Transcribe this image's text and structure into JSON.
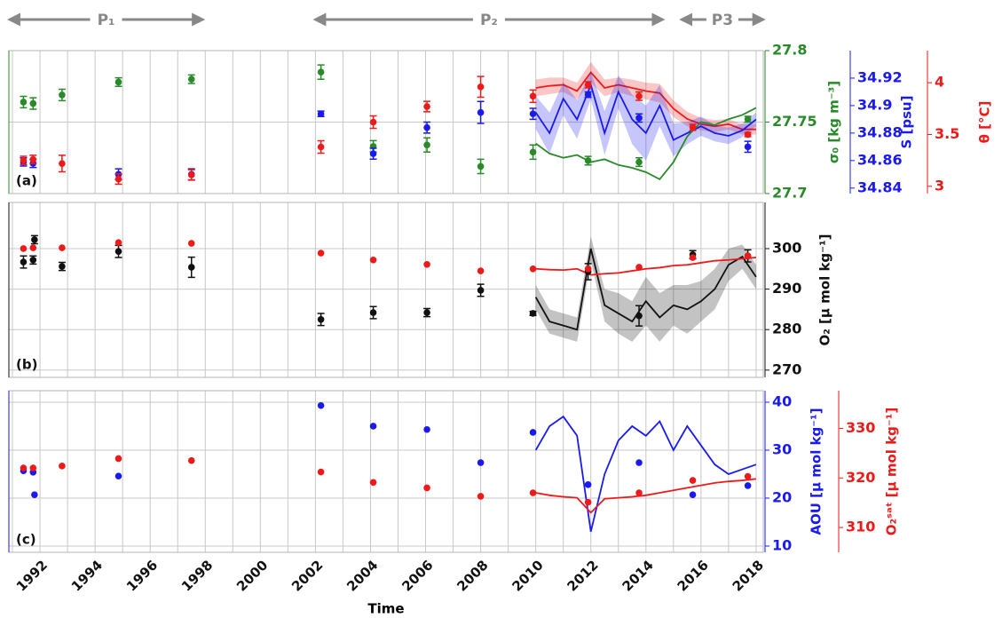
{
  "shared_x": {
    "label": "Time",
    "xlim": [
      1990.87,
      2018.26
    ],
    "xticks": [
      1992,
      1994,
      1996,
      1998,
      2000,
      2002,
      2004,
      2006,
      2008,
      2010,
      2012,
      2014,
      2016,
      2018
    ],
    "minor_xticks": [
      1991,
      1993,
      1995,
      1997,
      1999,
      2001,
      2003,
      2005,
      2007,
      2009,
      2011,
      2013,
      2015,
      2017
    ]
  },
  "periods": [
    {
      "label": "P₁",
      "start": 1990.9,
      "end": 1997.9
    },
    {
      "label": "P₂",
      "start": 2002.0,
      "end": 2014.6
    },
    {
      "label": "P3",
      "start": 2015.3,
      "end": 2018.25
    }
  ],
  "chart_data": [
    {
      "type": "line",
      "panel_label": "(a)",
      "grid": true,
      "ylim": [
        27.7,
        27.8
      ],
      "yticks": [
        27.7,
        27.75,
        27.8
      ],
      "ylabel": "σ₀ [kg m⁻³]",
      "ycolor": "#2a8a2a",
      "y2lim": [
        34.836,
        34.94
      ],
      "y2ticks": [
        34.84,
        34.86,
        34.88,
        34.9,
        34.92
      ],
      "y2label": "S [psu]",
      "y2color": "#1a1aee",
      "y3lim": [
        2.93,
        4.31
      ],
      "y3ticks": [
        3,
        3.5,
        4
      ],
      "y3label": "θ [°C]",
      "y3color": "#ee1a1a",
      "series": [
        {
          "kind": "line",
          "axis": "y3",
          "color": "#ee1a1a",
          "x": [
            2010,
            2010.5,
            2011,
            2011.5,
            2012,
            2012.5,
            2013,
            2013.5,
            2014,
            2014.5,
            2015,
            2015.5,
            2016,
            2016.5,
            2017,
            2017.5,
            2018
          ],
          "values": [
            3.95,
            3.97,
            3.98,
            3.92,
            4.1,
            3.95,
            3.98,
            3.95,
            3.92,
            3.9,
            3.75,
            3.65,
            3.6,
            3.58,
            3.6,
            3.55,
            3.55
          ],
          "band": [
            0.08,
            0.08,
            0.07,
            0.08,
            0.1,
            0.08,
            0.07,
            0.08,
            0.08,
            0.09,
            0.08,
            0.07,
            0.06,
            0.06,
            0.05,
            0.05,
            0.05
          ]
        },
        {
          "kind": "line",
          "axis": "y2",
          "color": "#1a1aee",
          "x": [
            2010,
            2010.5,
            2011,
            2011.5,
            2012,
            2012.5,
            2013,
            2013.5,
            2014,
            2014.5,
            2015,
            2015.5,
            2016,
            2016.5,
            2017,
            2017.5,
            2018
          ],
          "values": [
            34.895,
            34.88,
            34.905,
            34.89,
            34.915,
            34.88,
            34.91,
            34.89,
            34.88,
            34.9,
            34.875,
            34.88,
            34.885,
            34.88,
            34.878,
            34.882,
            34.89
          ],
          "band": [
            0.012,
            0.015,
            0.012,
            0.014,
            0.01,
            0.016,
            0.012,
            0.018,
            0.02,
            0.015,
            0.012,
            0.008,
            0.007,
            0.006,
            0.006,
            0.005,
            0.005
          ]
        },
        {
          "kind": "line",
          "axis": "y",
          "color": "#2a8a2a",
          "x": [
            2010,
            2010.5,
            2011,
            2011.5,
            2012,
            2012.5,
            2013,
            2013.5,
            2014,
            2014.5,
            2015,
            2015.5,
            2016,
            2016.5,
            2017,
            2017.5,
            2018
          ],
          "values": [
            27.735,
            27.728,
            27.725,
            27.727,
            27.722,
            27.724,
            27.72,
            27.718,
            27.715,
            27.71,
            27.722,
            27.74,
            27.75,
            27.748,
            27.752,
            27.755,
            27.76
          ]
        },
        {
          "kind": "points",
          "axis": "y",
          "color": "#2a8a2a",
          "x": [
            1991.4,
            1991.75,
            1992.8,
            1994.85,
            1997.5,
            2002.2,
            2004.1,
            2006.05,
            2008.0,
            2009.9,
            2011.9,
            2013.75,
            2017.7
          ],
          "values": [
            27.764,
            27.763,
            27.769,
            27.778,
            27.78,
            27.785,
            27.733,
            27.734,
            27.719,
            27.729,
            27.723,
            27.722,
            27.752
          ],
          "errors": [
            0.004,
            0.004,
            0.004,
            0.003,
            0.003,
            0.005,
            0.004,
            0.005,
            0.005,
            0.005,
            0.003,
            0.003,
            0.002
          ]
        },
        {
          "kind": "points",
          "axis": "y2",
          "color": "#1a1aee",
          "x": [
            1991.4,
            1991.75,
            1994.85,
            1997.5,
            2002.2,
            2004.1,
            2006.05,
            2008.0,
            2009.9,
            2011.9,
            2013.75,
            2017.7
          ],
          "values": [
            34.859,
            34.858,
            34.85,
            34.85,
            34.894,
            34.865,
            34.884,
            34.895,
            34.894,
            34.908,
            34.891,
            34.87
          ],
          "errors": [
            0.003,
            0.003,
            0.004,
            0.004,
            0.002,
            0.004,
            0.004,
            0.008,
            0.004,
            0.002,
            0.003,
            0.004
          ]
        },
        {
          "kind": "points",
          "axis": "y3",
          "color": "#ee1a1a",
          "x": [
            1991.4,
            1991.75,
            1992.8,
            1994.85,
            1997.5,
            2002.2,
            2004.1,
            2006.05,
            2008.0,
            2009.9,
            2011.9,
            2013.75,
            2015.7,
            2017.7
          ],
          "values": [
            3.25,
            3.26,
            3.22,
            3.07,
            3.11,
            3.38,
            3.62,
            3.77,
            3.96,
            3.87,
            3.98,
            3.87,
            3.57,
            3.5
          ],
          "errors": [
            0.04,
            0.04,
            0.08,
            0.05,
            0.05,
            0.06,
            0.06,
            0.05,
            0.1,
            0.06,
            0.03,
            0.04,
            0.03,
            0.02
          ]
        }
      ]
    },
    {
      "type": "line",
      "panel_label": "(b)",
      "grid": true,
      "ylim": [
        268.2,
        311.4
      ],
      "yticks": [
        270,
        280,
        290,
        300
      ],
      "ylabel": "O₂ [μ mol kg⁻¹]",
      "ycolor": "#111111",
      "series": [
        {
          "kind": "line",
          "axis": "y",
          "color": "#111111",
          "x": [
            2010,
            2010.5,
            2011,
            2011.5,
            2012,
            2012.5,
            2013,
            2013.5,
            2014,
            2014.5,
            2015,
            2015.5,
            2016,
            2016.5,
            2017,
            2017.5,
            2018
          ],
          "values": [
            288,
            282,
            281,
            280,
            300,
            286,
            284,
            282,
            287,
            283,
            286,
            285,
            287,
            290,
            296,
            298,
            293
          ],
          "band": [
            3,
            3,
            3,
            3,
            3,
            4,
            5,
            5,
            6,
            6,
            5,
            6,
            5,
            5,
            4,
            3,
            3
          ]
        },
        {
          "kind": "line",
          "axis": "y",
          "color": "#ee1a1a",
          "x": [
            2010,
            2010.5,
            2011,
            2011.5,
            2012,
            2012.5,
            2013,
            2013.5,
            2014,
            2014.5,
            2015,
            2015.5,
            2016,
            2016.5,
            2017,
            2017.5,
            2018
          ],
          "values": [
            295,
            294.8,
            294.7,
            295,
            293.5,
            293.8,
            294,
            294.5,
            295,
            295.3,
            295.8,
            296,
            296.5,
            297,
            297.2,
            297.5,
            297.8
          ]
        },
        {
          "kind": "points",
          "axis": "y",
          "color": "#111111",
          "x": [
            1991.4,
            1991.75,
            1991.8,
            1992.8,
            1994.85,
            1997.5,
            2002.2,
            2004.1,
            2006.05,
            2008.0,
            2009.9,
            2011.9,
            2013.75,
            2015.7,
            2017.7
          ],
          "values": [
            296.7,
            297.2,
            302.2,
            295.6,
            299.3,
            295.4,
            282.5,
            284.2,
            284.2,
            289.7,
            284.0,
            294.3,
            283.4,
            298.5,
            298.2
          ],
          "errors": [
            1.5,
            1,
            1,
            1,
            1.5,
            2.5,
            1.5,
            1.5,
            1,
            1.5,
            0.5,
            2,
            2.5,
            1,
            1.5
          ]
        },
        {
          "kind": "points",
          "axis": "y",
          "color": "#ee1a1a",
          "x": [
            1991.4,
            1991.75,
            1992.8,
            1994.85,
            1997.5,
            2002.2,
            2004.1,
            2006.05,
            2008.0,
            2009.9,
            2011.9,
            2013.75,
            2015.7,
            2017.7
          ],
          "values": [
            300,
            300.2,
            300.2,
            301.5,
            301.3,
            298.9,
            297.2,
            296.1,
            294.5,
            295,
            295,
            295.4,
            297.8,
            298.2
          ]
        }
      ]
    },
    {
      "type": "line",
      "panel_label": "(c)",
      "grid": true,
      "ylim": [
        8.7,
        42.4
      ],
      "yticks": [
        10,
        20,
        30,
        40
      ],
      "ylabel": "AOU [μ mol kg⁻¹]",
      "ycolor": "#1a1aee",
      "y2lim": [
        305.0,
        337.6
      ],
      "y2ticks": [
        310,
        320,
        330
      ],
      "y2label": "O₂ˢᵃᵗ [μ mol kg⁻¹]",
      "y2color": "#ee1a1a",
      "series": [
        {
          "kind": "line",
          "axis": "y",
          "color": "#1a1aee",
          "x": [
            2010,
            2010.5,
            2011,
            2011.5,
            2012,
            2012.5,
            2013,
            2013.5,
            2014,
            2014.5,
            2015,
            2015.5,
            2016,
            2016.5,
            2017,
            2017.5,
            2018
          ],
          "values": [
            30,
            35,
            37,
            33,
            13,
            25,
            32,
            35,
            33,
            36,
            30,
            35,
            31,
            27,
            25,
            26,
            27
          ]
        },
        {
          "kind": "line",
          "axis": "y2",
          "color": "#ee1a1a",
          "x": [
            2010,
            2010.5,
            2011,
            2011.5,
            2012,
            2012.5,
            2013,
            2013.5,
            2014,
            2014.5,
            2015,
            2015.5,
            2016,
            2016.5,
            2017,
            2017.5,
            2018
          ],
          "values": [
            317,
            316.5,
            316.2,
            316,
            313,
            315.8,
            316,
            316.2,
            316.5,
            317,
            317.5,
            318,
            318.5,
            319,
            319.3,
            319.5,
            319.8
          ]
        },
        {
          "kind": "points",
          "axis": "y",
          "color": "#1a1aee",
          "x": [
            1991.4,
            1991.75,
            1991.8,
            1994.85,
            2002.2,
            2004.1,
            2006.05,
            2008.0,
            2009.9,
            2011.9,
            2013.75,
            2015.7,
            2017.7
          ],
          "values": [
            25.7,
            25.4,
            20.7,
            24.6,
            39.3,
            35,
            34.3,
            27.4,
            33.7,
            22.8,
            27.4,
            20.7,
            22.6
          ]
        },
        {
          "kind": "points",
          "axis": "y2",
          "color": "#ee1a1a",
          "x": [
            1991.4,
            1991.75,
            1992.8,
            1994.85,
            1997.5,
            2002.2,
            2004.1,
            2006.05,
            2008.0,
            2009.9,
            2011.9,
            2013.75,
            2015.7,
            2017.7
          ],
          "values": [
            322,
            322,
            322.4,
            323.9,
            323.5,
            321.2,
            319.1,
            318,
            316.3,
            317,
            315.1,
            317,
            319.5,
            320.3
          ]
        }
      ]
    }
  ]
}
